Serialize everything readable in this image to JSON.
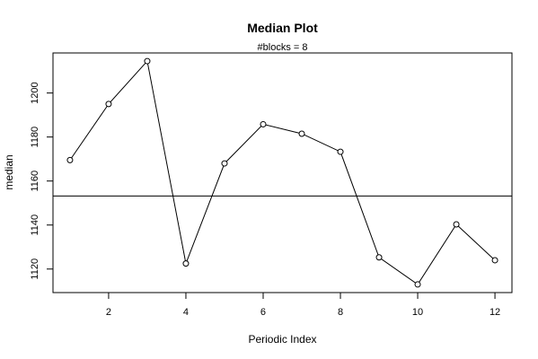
{
  "chart_data": {
    "type": "line",
    "title": "Median Plot",
    "subtitle": "#blocks =  8",
    "xlabel": "Periodic Index",
    "ylabel": "median",
    "x": [
      1,
      2,
      3,
      4,
      5,
      6,
      7,
      8,
      9,
      10,
      11,
      12
    ],
    "series": [
      {
        "values": [
          1169.5,
          1195,
          1214.5,
          1122.5,
          1168,
          1185.8,
          1181.5,
          1173.3,
          1125.3,
          1113,
          1140.3,
          1124
        ]
      }
    ],
    "hline": 1153.2,
    "xlim": [
      0.56,
      12.44
    ],
    "ylim": [
      1109.3,
      1218.2
    ],
    "xticks": [
      2,
      4,
      6,
      8,
      10,
      12
    ],
    "yticks": [
      1120,
      1140,
      1160,
      1180,
      1200
    ],
    "marker": "open-circle",
    "grid": false,
    "legend": "none"
  }
}
